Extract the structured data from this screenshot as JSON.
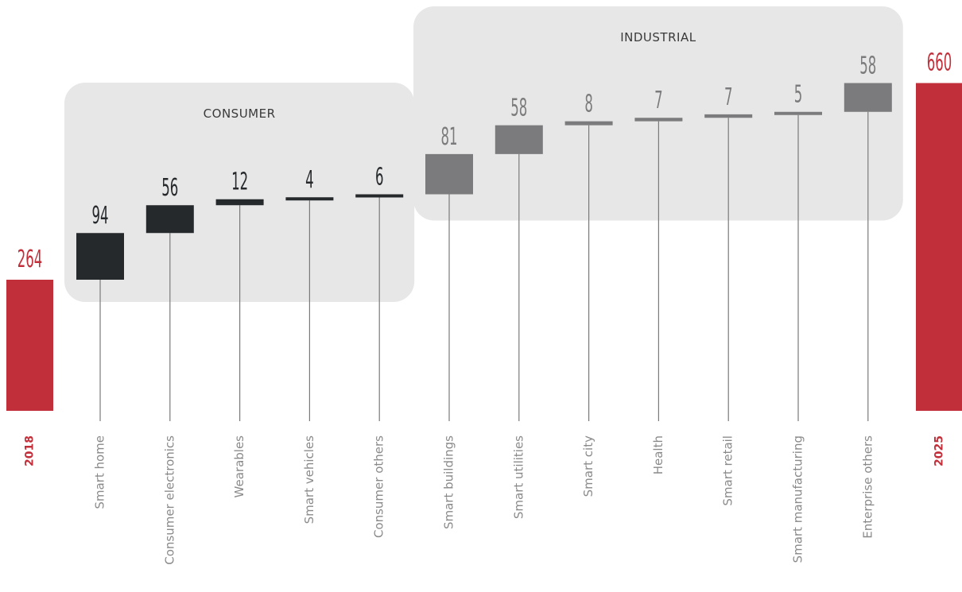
{
  "chart_data": {
    "type": "bar",
    "subtype": "waterfall",
    "start": {
      "label": "2018",
      "value": 264
    },
    "end": {
      "label": "2025",
      "value": 660
    },
    "groups": [
      {
        "name": "CONSUMER",
        "categories": [
          "Smart home",
          "Consumer electronics",
          "Wearables",
          "Smart vehicles",
          "Consumer others"
        ]
      },
      {
        "name": "INDUSTRIAL",
        "categories": [
          "Smart buildings",
          "Smart utilities",
          "Smart city",
          "Health",
          "Smart retail",
          "Smart manufacturing",
          "Enterprise others"
        ]
      }
    ],
    "categories": [
      "Smart home",
      "Consumer electronics",
      "Wearables",
      "Smart vehicles",
      "Consumer others",
      "Smart buildings",
      "Smart utilities",
      "Smart city",
      "Health",
      "Smart retail",
      "Smart manufacturing",
      "Enterprise others"
    ],
    "values": [
      94,
      56,
      12,
      4,
      6,
      81,
      58,
      8,
      7,
      7,
      5,
      58
    ],
    "value_labels": [
      "94",
      "56",
      "12",
      "4",
      "6",
      "81",
      "58",
      "8",
      "7",
      "7",
      "5",
      "58"
    ],
    "colors": {
      "total": "#c1303a",
      "consumer": "#26292c",
      "industrial": "#7b7b7d",
      "group_bg": "#e7e7e7",
      "label": "#8a8a8a",
      "connector": "#7a7a7a"
    }
  }
}
